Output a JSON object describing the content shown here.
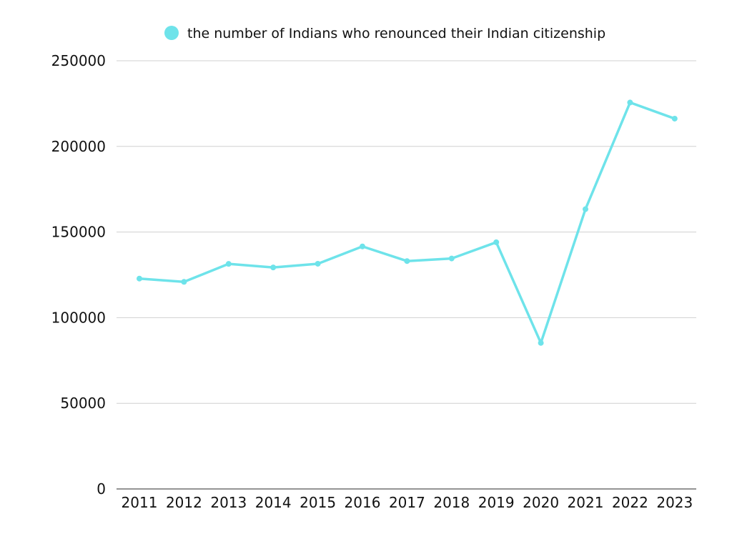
{
  "chart_data": {
    "type": "line",
    "title": "",
    "xlabel": "",
    "ylabel": "",
    "categories": [
      "2011",
      "2012",
      "2013",
      "2014",
      "2015",
      "2016",
      "2017",
      "2018",
      "2019",
      "2020",
      "2021",
      "2022",
      "2023"
    ],
    "series": [
      {
        "name": "the number of Indians who renounced their Indian citizenship",
        "color": "#6ee3ea",
        "values": [
          122819,
          120923,
          131405,
          129328,
          131489,
          141603,
          133049,
          134561,
          144017,
          85256,
          163370,
          225620,
          216219
        ]
      }
    ],
    "ylim": [
      0,
      250000
    ],
    "yticks": [
      "0",
      "50000",
      "100000",
      "150000",
      "200000",
      "250000"
    ],
    "grid": true,
    "legend_position": "top"
  }
}
